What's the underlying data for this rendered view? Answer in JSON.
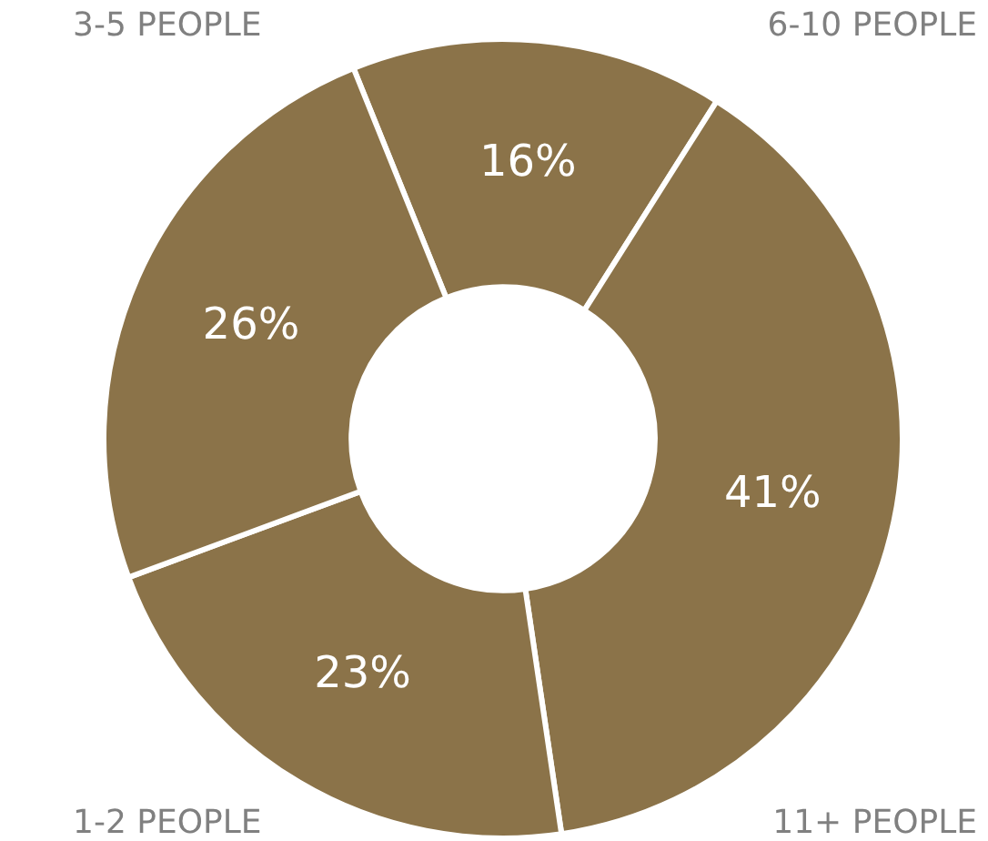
{
  "chart_data": {
    "type": "donut",
    "categories": [
      "6-10 PEOPLE",
      "11+ PEOPLE",
      "1-2 PEOPLE",
      "3-5 PEOPLE"
    ],
    "values": [
      16,
      41,
      23,
      26
    ],
    "colors": [
      "#8b7349",
      "#8b7349",
      "#8b7349",
      "#8b7349"
    ],
    "value_labels": [
      "16%",
      "41%",
      "23%",
      "26%"
    ],
    "legend": false
  }
}
